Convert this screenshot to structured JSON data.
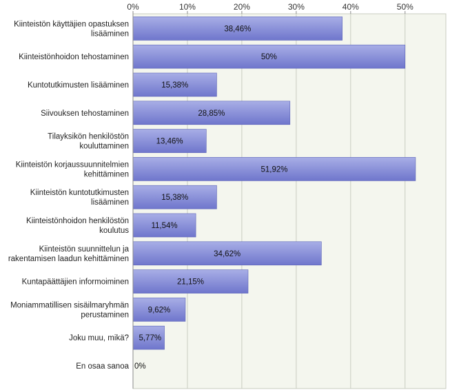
{
  "chart_data": {
    "type": "bar",
    "orientation": "horizontal",
    "categories": [
      [
        "Kiinteistön käyttäjien opastuksen",
        "lisääminen"
      ],
      [
        "Kiinteistönhoidon tehostaminen"
      ],
      [
        "Kuntotutkimusten lisääminen"
      ],
      [
        "Siivouksen tehostaminen"
      ],
      [
        "Tilayksikön henkilöstön",
        "kouluttaminen"
      ],
      [
        "Kiinteistön korjaussuunnitelmien",
        "kehittäminen"
      ],
      [
        "Kiinteistön kuntotutkimusten",
        "lisääminen"
      ],
      [
        "Kiinteistönhoidon henkilöstön",
        "koulutus"
      ],
      [
        "Kiinteistön suunnittelun ja",
        "rakentamisen laadun kehittäminen"
      ],
      [
        "Kuntapäättäjien informoiminen"
      ],
      [
        "Moniammatillisen sisäilmaryhmän",
        "perustaminen"
      ],
      [
        "Joku muu, mikä?"
      ],
      [
        "En osaa sanoa"
      ]
    ],
    "values": [
      38.46,
      50,
      15.38,
      28.85,
      13.46,
      51.92,
      15.38,
      11.54,
      34.62,
      21.15,
      9.62,
      5.77,
      0
    ],
    "value_labels": [
      "38,46%",
      "50%",
      "15,38%",
      "28,85%",
      "13,46%",
      "51,92%",
      "15,38%",
      "11,54%",
      "34,62%",
      "21,15%",
      "9,62%",
      "5,77%",
      "0%"
    ],
    "xticks": [
      0,
      10,
      20,
      30,
      40,
      50
    ],
    "xtick_labels": [
      "0%",
      "10%",
      "20%",
      "30%",
      "40%",
      "50%"
    ],
    "xlim": [
      0,
      57.5
    ],
    "axis_position": "top",
    "grid": true,
    "colors": {
      "bar_fill_top": "#a8aee6",
      "bar_fill_bottom": "#6f76cc",
      "bar_stroke": "#5a62b8",
      "plot_bg": "#f4f6ee",
      "grid": "#c8ccc0",
      "axis": "#8a8a8a"
    }
  }
}
